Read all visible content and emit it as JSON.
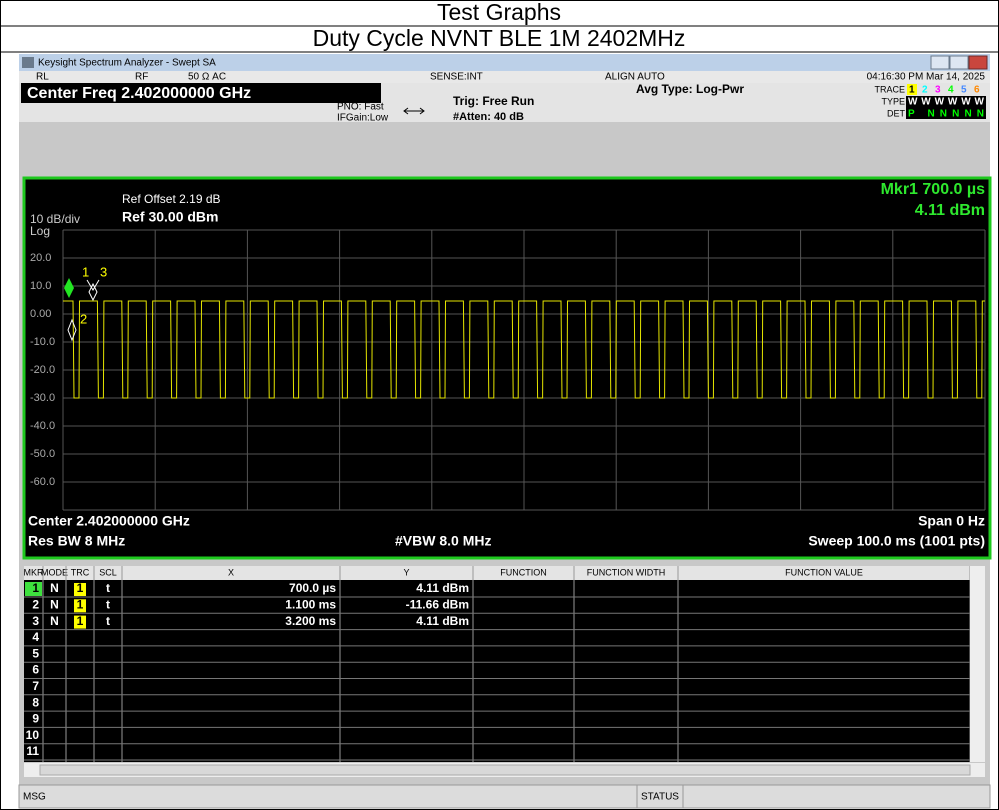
{
  "header": {
    "title": "Test Graphs",
    "subtitle": "Duty Cycle NVNT BLE 1M 2402MHz"
  },
  "window": {
    "title": "Keysight Spectrum Analyzer - Swept SA"
  },
  "status": {
    "ref_level": "RL",
    "input": "RF",
    "impedance": "50 Ω  AC",
    "sense": "SENSE:INT",
    "align": "ALIGN AUTO",
    "datetime": "04:16:30 PM Mar 14, 2025"
  },
  "settings": {
    "center_freq": "Center Freq 2.402000000 GHz",
    "pno": "PNO: Fast",
    "ifgain": "IFGain:Low",
    "trig": "Trig: Free Run",
    "atten": "#Atten: 40 dB",
    "avg_type": "Avg Type: Log-Pwr",
    "trace_label": "TRACE",
    "trace_numbers": [
      "1",
      "2",
      "3",
      "4",
      "5",
      "6"
    ],
    "type_label": "TYPE",
    "type_values": "WWWWWW",
    "det_label": "DET",
    "det_values": "P NNNNN"
  },
  "graph": {
    "ref_offset": "Ref Offset 2.19 dB",
    "ref_level": "Ref 30.00 dBm",
    "scale": "10 dB/div",
    "scale_type": "Log",
    "marker_readout": [
      "Mkr1 700.0 µs",
      "4.11 dBm"
    ],
    "y_labels": [
      "20.0",
      "10.0",
      "0.00",
      "-10.0",
      "-20.0",
      "-30.0",
      "-40.0",
      "-50.0",
      "-60.0"
    ],
    "marker_labels": [
      "1",
      "2",
      "3"
    ],
    "center": "Center 2.402000000 GHz",
    "span": "Span 0 Hz",
    "res_bw": "Res BW 8 MHz",
    "vbw": "#VBW 8.0 MHz",
    "sweep": "Sweep  100.0 ms (1001 pts)"
  },
  "marker_table": {
    "columns": [
      "MKR",
      "MODE",
      "TRC",
      "SCL",
      "X",
      "Y",
      "FUNCTION",
      "FUNCTION WIDTH",
      "FUNCTION VALUE"
    ],
    "rows": [
      [
        "1",
        "N",
        "1",
        "t",
        "700.0 µs",
        "4.11 dBm"
      ],
      [
        "2",
        "N",
        "1",
        "t",
        "1.100 ms",
        "-11.66 dBm"
      ],
      [
        "3",
        "N",
        "1",
        "t",
        "3.200 ms",
        "4.11 dBm"
      ],
      [
        "4"
      ],
      [
        "5"
      ],
      [
        "6"
      ],
      [
        "7"
      ],
      [
        "8"
      ],
      [
        "9"
      ],
      [
        "10"
      ],
      [
        "11"
      ]
    ]
  },
  "footer": {
    "msg": "MSG",
    "status": "STATUS"
  }
}
